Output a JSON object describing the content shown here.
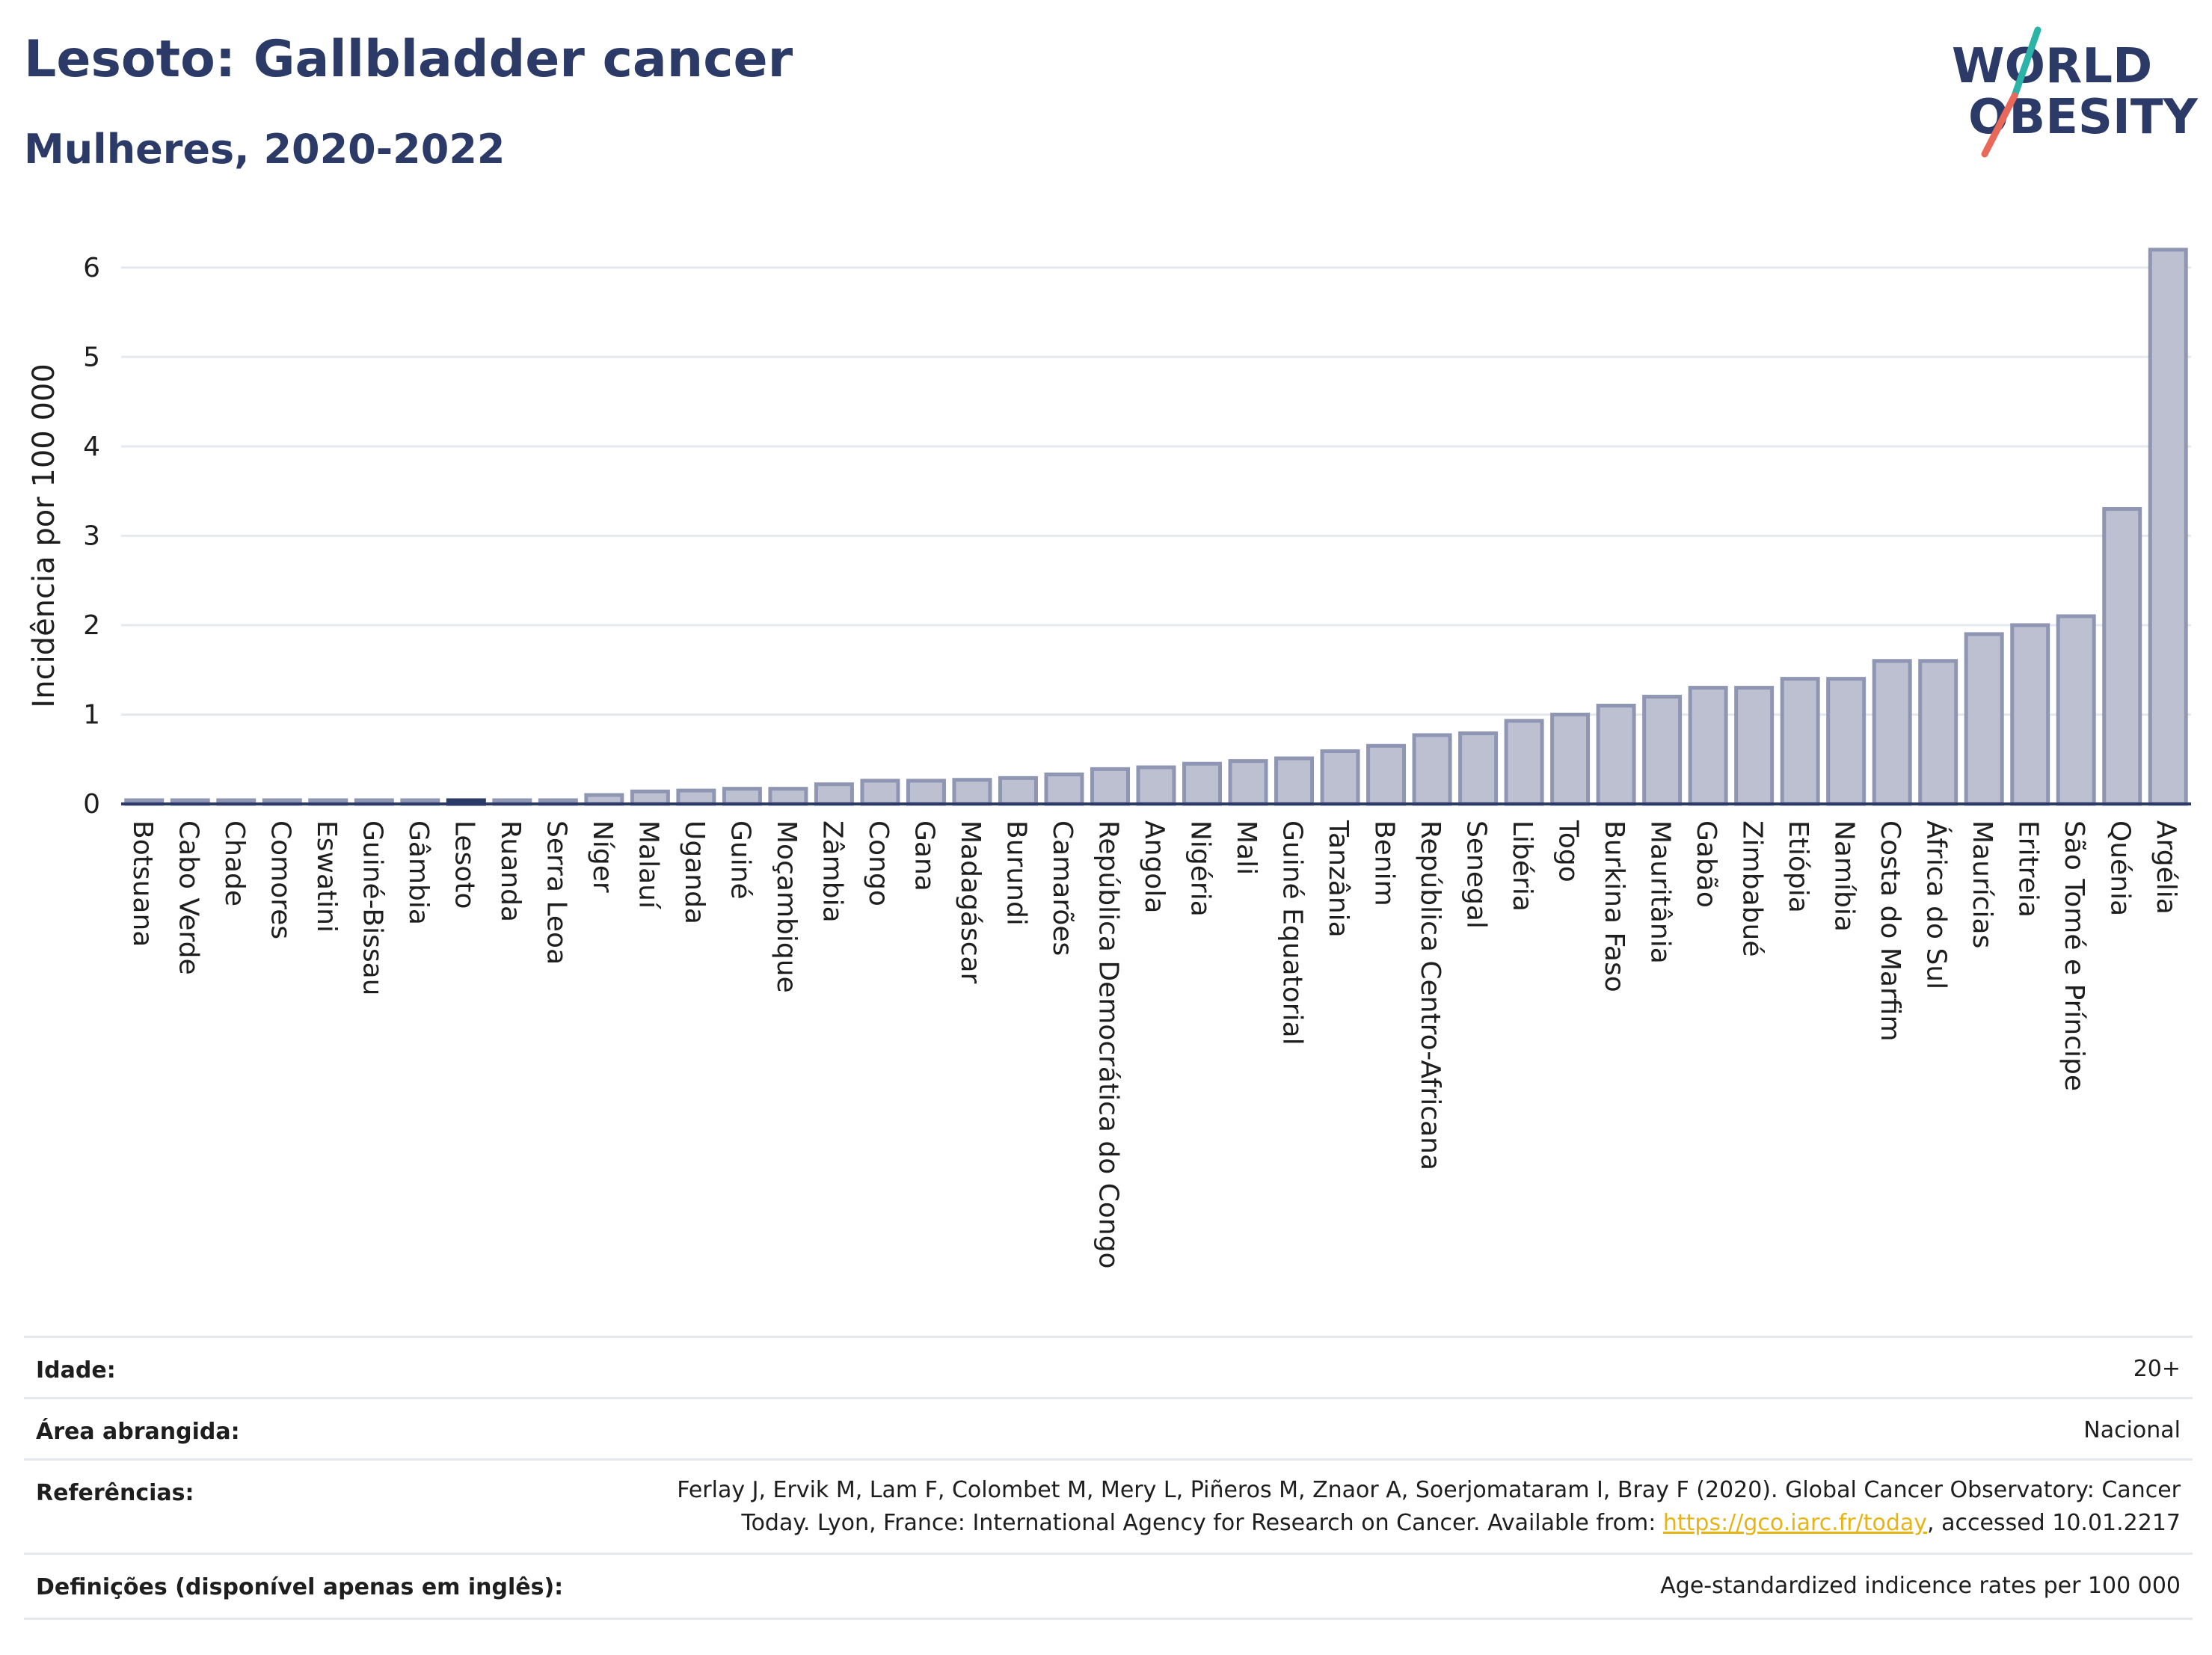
{
  "header": {
    "title": "Lesoto: Gallbladder cancer",
    "subtitle": "Mulheres, 2020-2022"
  },
  "logo": {
    "line1": "WORLD",
    "line2": "OBESITY",
    "colors": {
      "text": "#2b3a67",
      "slash_teal": "#2bb3a8",
      "slash_coral": "#e9685a"
    }
  },
  "colors": {
    "bar_fill": "#bcc0d0",
    "bar_stroke": "#8f96b3",
    "highlight_fill": "#2b3a67",
    "axis": "#2b3a67",
    "grid": "#e6e8f0",
    "title": "#2b3a67"
  },
  "chart_data": {
    "type": "bar",
    "ylabel": "Incidência por 100 000",
    "ylim": [
      0,
      6.5
    ],
    "yticks": [
      0,
      1,
      2,
      3,
      4,
      5,
      6
    ],
    "grid": true,
    "highlight": "Lesoto",
    "categories": [
      "Botsuana",
      "Cabo Verde",
      "Chade",
      "Comores",
      "Eswatini",
      "Guiné-Bissau",
      "Gâmbia",
      "Lesoto",
      "Ruanda",
      "Serra Leoa",
      "Níger",
      "Malauí",
      "Uganda",
      "Guiné",
      "Moçambique",
      "Zâmbia",
      "Congo",
      "Gana",
      "Madagáscar",
      "Burundi",
      "Camarões",
      "República Democrática do Congo",
      "Angola",
      "Nigéria",
      "Mali",
      "Guiné Equatorial",
      "Tanzânia",
      "Benim",
      "República Centro-Africana",
      "Senegal",
      "Libéria",
      "Togo",
      "Burkina Faso",
      "Mauritânia",
      "Gabão",
      "Zimbabué",
      "Etiópia",
      "Namíbia",
      "Costa do Marfim",
      "África do Sul",
      "Maurícias",
      "Eritreia",
      "São Tomé e Príncipe",
      "Quénia",
      "Argélia"
    ],
    "values": [
      0.02,
      0.02,
      0.02,
      0.02,
      0.02,
      0.02,
      0.02,
      0.03,
      0.02,
      0.02,
      0.1,
      0.14,
      0.15,
      0.17,
      0.17,
      0.22,
      0.26,
      0.26,
      0.27,
      0.29,
      0.33,
      0.39,
      0.41,
      0.45,
      0.48,
      0.51,
      0.59,
      0.65,
      0.77,
      0.79,
      0.93,
      1.0,
      1.1,
      1.2,
      1.3,
      1.3,
      1.4,
      1.4,
      1.6,
      1.6,
      1.9,
      2.0,
      2.1,
      3.3,
      6.2
    ]
  },
  "meta": {
    "age_label": "Idade:",
    "age_value": "20+",
    "area_label": "Área abrangida:",
    "area_value": "Nacional",
    "refs_label": "Referências:",
    "refs_line1": "Ferlay J, Ervik M, Lam F, Colombet M, Mery L, Piñeros M, Znaor A, Soerjomataram I, Bray F (2020). Global Cancer Observatory: Cancer",
    "refs_line2_pre": "Today. Lyon, France: International Agency for Research on Cancer. Available from: ",
    "refs_link": "https://gco.iarc.fr/today",
    "refs_line2_post": ", accessed 10.01.2217",
    "defs_label": "Definições (disponível apenas em inglês):",
    "defs_value": "Age-standardized indicence rates per 100 000"
  }
}
